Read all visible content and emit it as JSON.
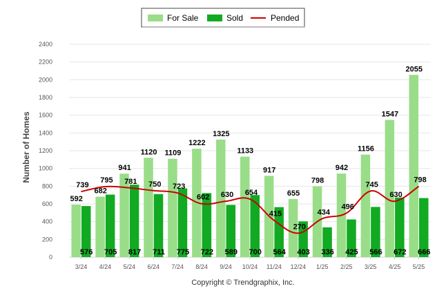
{
  "chart_data": {
    "type": "bar",
    "categories": [
      "3/24",
      "4/24",
      "5/24",
      "6/24",
      "7/24",
      "8/24",
      "9/24",
      "10/24",
      "11/24",
      "12/24",
      "1/25",
      "2/25",
      "3/25",
      "4/25",
      "5/25"
    ],
    "series": [
      {
        "name": "For Sale",
        "type": "bar",
        "color": "#99dd88",
        "values": [
          592,
          682,
          941,
          1120,
          1109,
          1222,
          1325,
          1133,
          917,
          655,
          798,
          942,
          1156,
          1547,
          2055
        ]
      },
      {
        "name": "Sold",
        "type": "bar",
        "color": "#11aa22",
        "values": [
          576,
          705,
          817,
          711,
          775,
          722,
          589,
          700,
          564,
          403,
          336,
          425,
          566,
          672,
          666
        ]
      },
      {
        "name": "Pended",
        "type": "line",
        "color": "#cc0000",
        "values": [
          739,
          795,
          781,
          750,
          723,
          602,
          630,
          654,
          415,
          270,
          434,
          496,
          745,
          630,
          798
        ]
      }
    ],
    "ylabel": "Number of Homes",
    "ylim": [
      0,
      2400
    ],
    "yticks": [
      0,
      200,
      400,
      600,
      800,
      1000,
      1200,
      1400,
      1600,
      1800,
      2000,
      2200,
      2400
    ],
    "grid": true,
    "legend_position": "top-center"
  },
  "footer": {
    "copyright": "Copyright © Trendgraphix, Inc."
  }
}
